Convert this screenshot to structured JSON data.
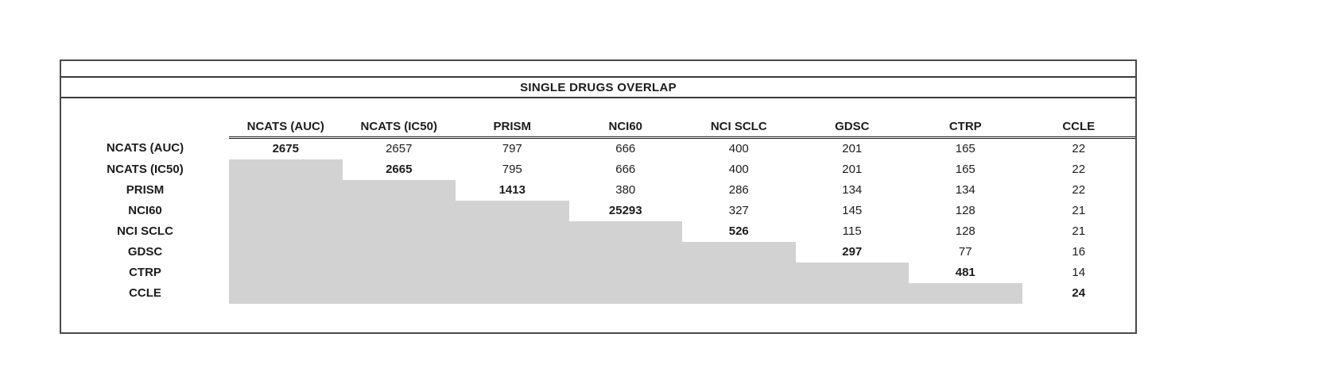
{
  "chart_data": {
    "type": "table",
    "title": "SINGLE DRUGS OVERLAP",
    "description_visible_structure": "triangular overlap matrix; lower triangle is gray-filled with no values; diagonal values are bold",
    "columns": [
      "NCATS (AUC)",
      "NCATS (IC50)",
      "PRISM",
      "NCI60",
      "NCI SCLC",
      "GDSC",
      "CTRP",
      "CCLE"
    ],
    "rows": [
      {
        "label": "NCATS (AUC)",
        "values": [
          2675,
          2657,
          797,
          666,
          400,
          201,
          165,
          22
        ]
      },
      {
        "label": "NCATS (IC50)",
        "values": [
          null,
          2665,
          795,
          666,
          400,
          201,
          165,
          22
        ]
      },
      {
        "label": "PRISM",
        "values": [
          null,
          null,
          1413,
          380,
          286,
          134,
          134,
          22
        ]
      },
      {
        "label": "NCI60",
        "values": [
          null,
          null,
          null,
          25293,
          327,
          145,
          128,
          21
        ]
      },
      {
        "label": "NCI SCLC",
        "values": [
          null,
          null,
          null,
          null,
          526,
          115,
          128,
          21
        ]
      },
      {
        "label": "GDSC",
        "values": [
          null,
          null,
          null,
          null,
          null,
          297,
          77,
          16
        ]
      },
      {
        "label": "CTRP",
        "values": [
          null,
          null,
          null,
          null,
          null,
          null,
          481,
          14
        ]
      },
      {
        "label": "CCLE",
        "values": [
          null,
          null,
          null,
          null,
          null,
          null,
          null,
          24
        ]
      }
    ],
    "colors": {
      "lower_triangle_fill": "#d2d2d2",
      "border": "#4a4a4a",
      "text": "#1c1c1c",
      "background": "#ffffff"
    }
  }
}
